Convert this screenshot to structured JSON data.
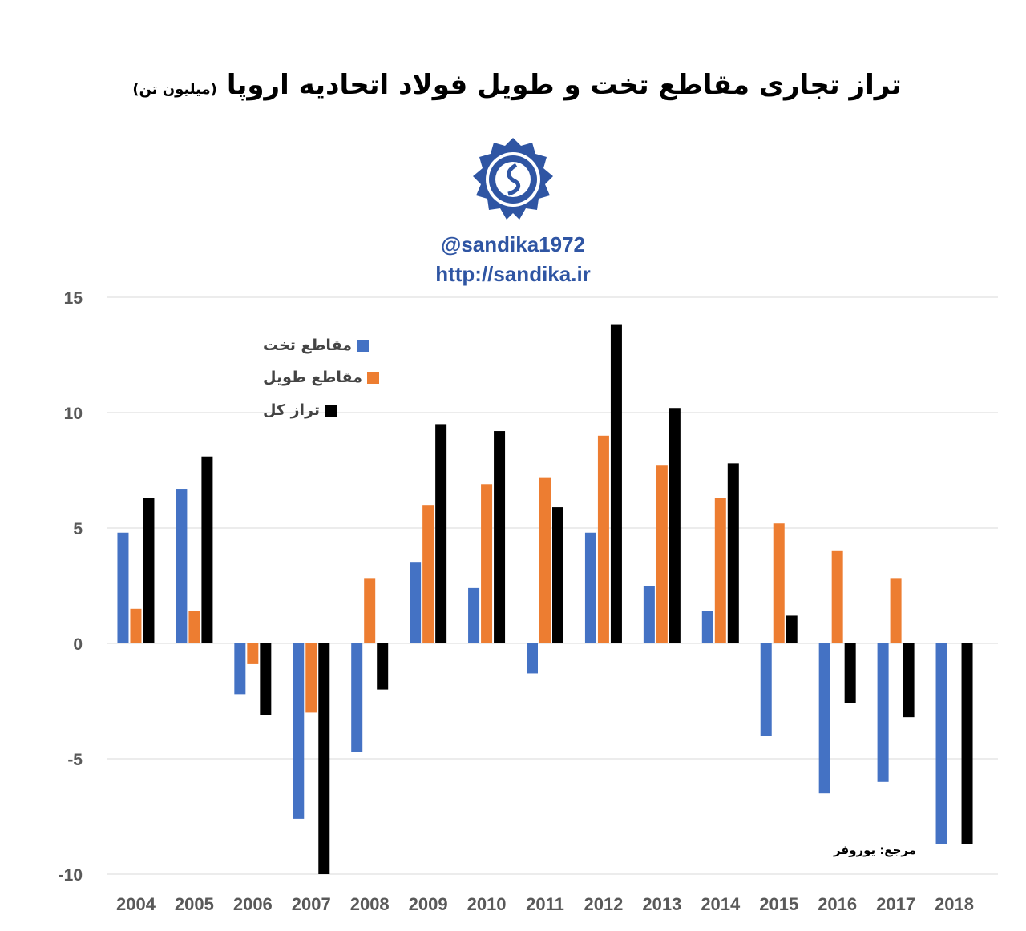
{
  "header": {
    "title": "تراز تجاری مقاطع تخت و طویل فولاد اتحادیه اروپا",
    "unit": "(میلیون تن)",
    "handle": "@sandika1972",
    "url": "http://sandika.ir",
    "logo_icon": "sandika-gear-logo"
  },
  "source": "مرجع: یوروفر",
  "chart_data": {
    "type": "bar",
    "title": "تراز تجاری مقاطع تخت و طویل فولاد اتحادیه اروپا",
    "ylabel": "(میلیون تن)",
    "ylim": [
      -10,
      15
    ],
    "yticks": [
      15,
      10,
      5,
      0,
      -5,
      -10
    ],
    "grid": true,
    "legend_position": "top-left",
    "categories": [
      "2004",
      "2005",
      "2006",
      "2007",
      "2008",
      "2009",
      "2010",
      "2011",
      "2012",
      "2013",
      "2014",
      "2015",
      "2016",
      "2017",
      "2018"
    ],
    "series": [
      {
        "name": "مقاطع تخت",
        "color": "#4472c4",
        "values": [
          4.8,
          6.7,
          -2.2,
          -7.6,
          -4.7,
          3.5,
          2.4,
          -1.3,
          4.8,
          2.5,
          1.4,
          -4.0,
          -6.5,
          -6.0,
          -8.7
        ]
      },
      {
        "name": "مقاطع طویل",
        "color": "#ed7d31",
        "values": [
          1.5,
          1.4,
          -0.9,
          -3.0,
          2.8,
          6.0,
          6.9,
          7.2,
          9.0,
          7.7,
          6.3,
          5.2,
          4.0,
          2.8,
          0
        ]
      },
      {
        "name": "تراز کل",
        "color": "#000000",
        "values": [
          6.3,
          8.1,
          -3.1,
          -10.0,
          -2.0,
          9.5,
          9.2,
          5.9,
          13.8,
          10.2,
          7.8,
          1.2,
          -2.6,
          -3.2,
          -8.7
        ]
      }
    ]
  }
}
